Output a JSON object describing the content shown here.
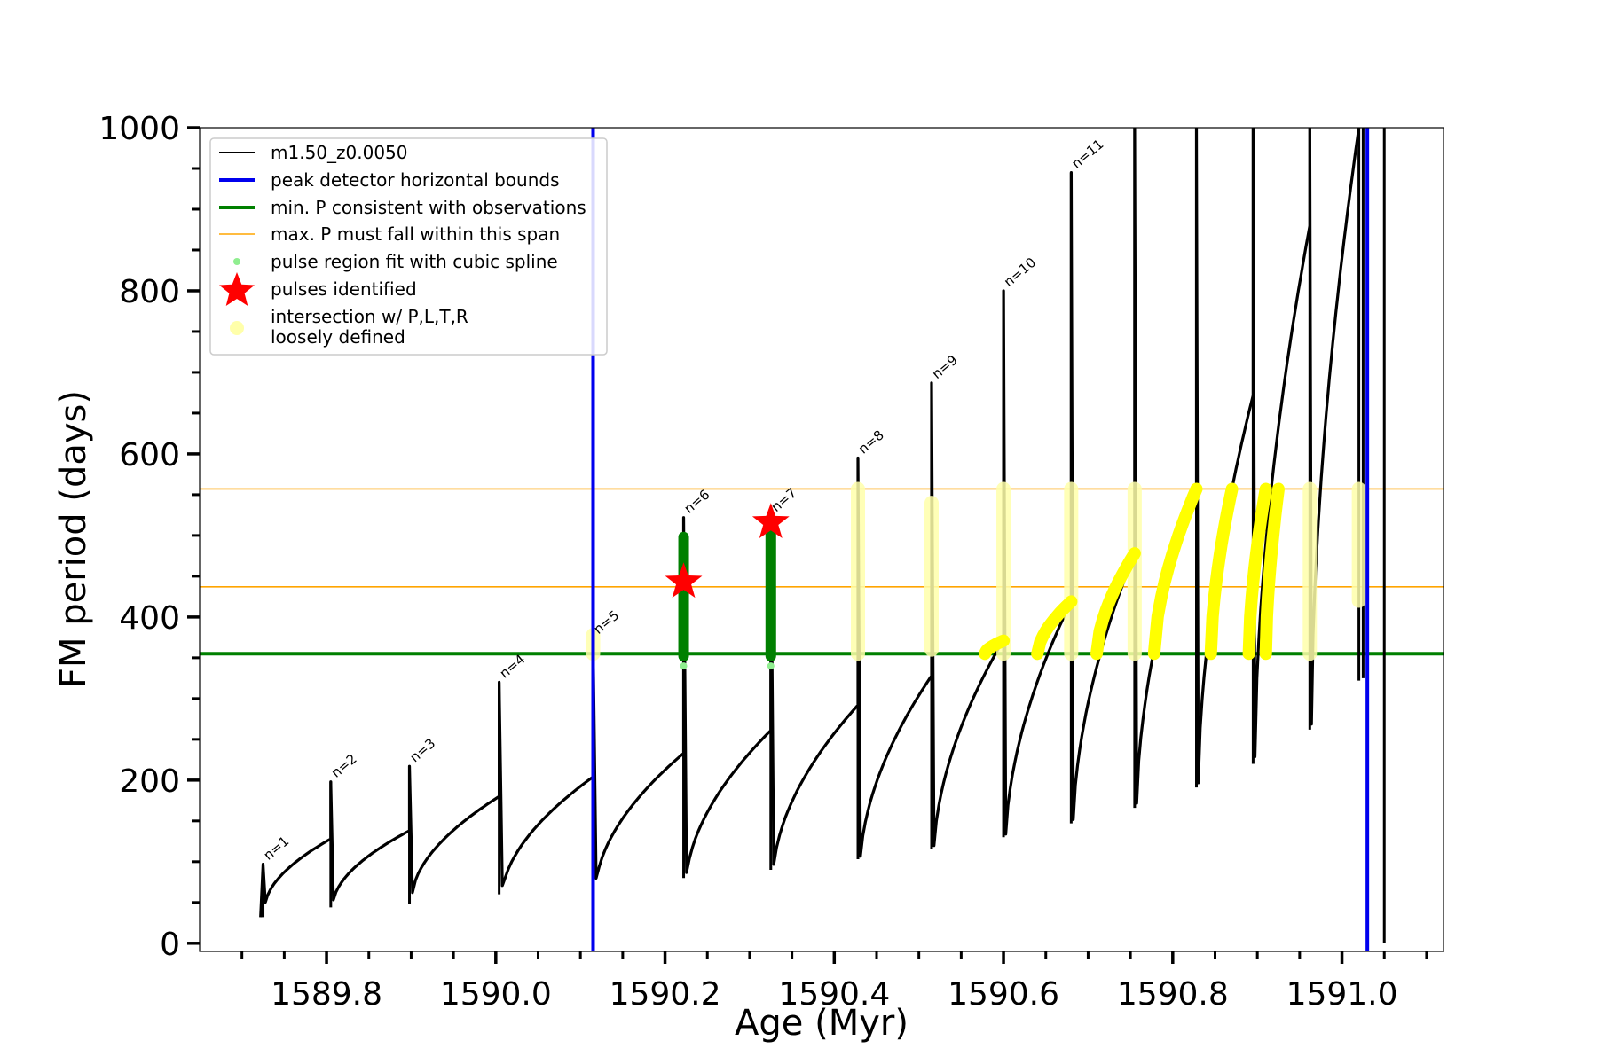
{
  "chart_data": {
    "type": "line",
    "xlabel": "Age (Myr)",
    "ylabel": "FM period (days)",
    "xlim": [
      1589.65,
      1591.12
    ],
    "ylim": [
      -10,
      1000
    ],
    "x_ticks": [
      1589.8,
      1590.0,
      1590.2,
      1590.4,
      1590.6,
      1590.8,
      1591.0
    ],
    "x_tick_labels": [
      "1589.8",
      "1590.0",
      "1590.2",
      "1590.4",
      "1590.6",
      "1590.8",
      "1591.0"
    ],
    "y_ticks": [
      0,
      200,
      400,
      600,
      800,
      1000
    ],
    "y_tick_labels": [
      "0",
      "200",
      "400",
      "600",
      "800",
      "1000"
    ],
    "grid": false,
    "legend_position": "top-left",
    "legend": [
      {
        "key": "model",
        "label": "m1.50_z0.0050",
        "color": "#000000",
        "style": "line-dot"
      },
      {
        "key": "bounds",
        "label": "peak detector horizontal bounds",
        "color": "#0000ee",
        "style": "thick-line"
      },
      {
        "key": "minp",
        "label": "min. P consistent with observations",
        "color": "#008000",
        "style": "thick-line"
      },
      {
        "key": "maxp",
        "label": "max. P must fall within this span",
        "color": "#ffa500",
        "style": "thin-line"
      },
      {
        "key": "spline",
        "label": "pulse region fit with cubic spline",
        "color": "#90ee90",
        "style": "dot"
      },
      {
        "key": "pulses",
        "label": "pulses identified",
        "color": "#ff0000",
        "style": "star"
      },
      {
        "key": "intersect",
        "label": "intersection w/ P,L,T,R",
        "label2": "loosely defined",
        "color": "#ffffaa",
        "style": "circle"
      }
    ],
    "series_name": "m1.50_z0.0050",
    "pulses": [
      {
        "age": 1589.725,
        "peak": 97,
        "min": 32,
        "start": 45,
        "end": 128,
        "label": "n=1"
      },
      {
        "age": 1589.805,
        "peak": 198,
        "min": 44,
        "start": 48,
        "end": 138,
        "label": "n=2"
      },
      {
        "age": 1589.898,
        "peak": 217,
        "min": 48,
        "start": 57,
        "end": 180,
        "label": "n=3"
      },
      {
        "age": 1590.004,
        "peak": 320,
        "min": 60,
        "start": 57,
        "end": 204,
        "label": "n=4"
      },
      {
        "age": 1590.115,
        "peak": 374,
        "min": 72,
        "start": 66,
        "end": 233,
        "label": "n=5"
      },
      {
        "age": 1590.222,
        "peak": 522,
        "min": 80,
        "start": 73,
        "end": 261,
        "label": "n=6"
      },
      {
        "age": 1590.325,
        "peak": 524,
        "min": 90,
        "start": 83,
        "end": 292,
        "label": "n=7"
      },
      {
        "age": 1590.428,
        "peak": 595,
        "min": 103,
        "start": 93,
        "end": 328,
        "label": "n=8"
      },
      {
        "age": 1590.515,
        "peak": 687,
        "min": 116,
        "start": 106,
        "end": 372,
        "label": "n=9"
      },
      {
        "age": 1590.6,
        "peak": 800,
        "min": 130,
        "start": 120,
        "end": 419,
        "label": "n=10"
      },
      {
        "age": 1590.68,
        "peak": 945,
        "min": 147,
        "start": 138,
        "end": 478,
        "label": "n=11"
      },
      {
        "age": 1590.755,
        "peak": 1000,
        "min": 166,
        "start": 158,
        "end": 556,
        "label": ""
      },
      {
        "age": 1590.828,
        "peak": 1000,
        "min": 191,
        "start": 183,
        "end": 672,
        "label": ""
      },
      {
        "age": 1590.895,
        "peak": 1000,
        "min": 220,
        "start": 215,
        "end": 880,
        "label": ""
      },
      {
        "age": 1590.962,
        "peak": 1000,
        "min": 262,
        "start": 255,
        "end": 1000,
        "label": ""
      },
      {
        "age": 1591.02,
        "peak": 1000,
        "min": 322,
        "start": 400,
        "end": 1000,
        "label": ""
      }
    ],
    "final_drop": {
      "age": 1591.05,
      "from": 1000,
      "to": 0
    },
    "first_age": 1589.722,
    "peak_detector_bounds_x": [
      1590.115,
      1591.03
    ],
    "min_period": 355,
    "max_period_span": [
      437,
      557
    ],
    "pulses_identified": [
      {
        "age": 1590.222,
        "period": 443
      },
      {
        "age": 1590.325,
        "period": 516
      }
    ],
    "spline_fit_pulses": [
      {
        "age": 1590.222,
        "from": 352,
        "to": 498
      },
      {
        "age": 1590.325,
        "from": 352,
        "to": 505
      }
    ],
    "intersection_regions": [
      {
        "age": 1590.115,
        "from": 355,
        "to": 378,
        "kind": "column"
      },
      {
        "age": 1590.428,
        "from": 355,
        "to": 557,
        "kind": "column"
      },
      {
        "age": 1590.515,
        "from": 360,
        "to": 540,
        "kind": "column"
      },
      {
        "age": 1590.6,
        "from": 355,
        "to": 557,
        "kind": "column"
      },
      {
        "age": 1590.68,
        "from": 355,
        "to": 557,
        "kind": "column"
      },
      {
        "age": 1590.755,
        "from": 355,
        "to": 557,
        "kind": "column"
      },
      {
        "age": 1590.962,
        "from": 355,
        "to": 557,
        "kind": "column"
      },
      {
        "age": 1591.02,
        "from": 420,
        "to": 557,
        "kind": "column"
      },
      {
        "age_start": 1590.578,
        "age_end": 1590.6,
        "from": 355,
        "to": 371,
        "kind": "curve"
      },
      {
        "age_start": 1590.64,
        "age_end": 1590.68,
        "from": 355,
        "to": 419,
        "kind": "curve"
      },
      {
        "age_start": 1590.71,
        "age_end": 1590.755,
        "from": 355,
        "to": 478,
        "kind": "curve"
      },
      {
        "age_start": 1590.778,
        "age_end": 1590.828,
        "from": 355,
        "to": 557,
        "kind": "curve"
      },
      {
        "age_start": 1590.845,
        "age_end": 1590.87,
        "from": 355,
        "to": 557,
        "kind": "curve"
      },
      {
        "age_start": 1590.89,
        "age_end": 1590.91,
        "from": 355,
        "to": 557,
        "kind": "curve"
      },
      {
        "age_start": 1590.91,
        "age_end": 1590.925,
        "from": 355,
        "to": 557,
        "kind": "curve"
      }
    ]
  }
}
